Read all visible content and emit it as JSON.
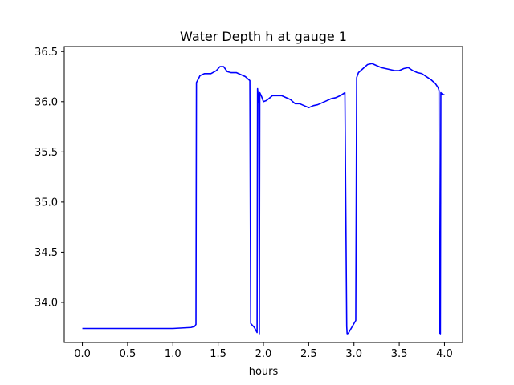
{
  "chart_data": {
    "type": "line",
    "title": "Water Depth h at gauge 1",
    "xlabel": "hours",
    "ylabel": "",
    "xlim": [
      -0.2,
      4.2
    ],
    "ylim": [
      33.6,
      36.55
    ],
    "xticks": [
      0.0,
      0.5,
      1.0,
      1.5,
      2.0,
      2.5,
      3.0,
      3.5,
      4.0
    ],
    "xtick_labels": [
      "0.0",
      "0.5",
      "1.0",
      "1.5",
      "2.0",
      "2.5",
      "3.0",
      "3.5",
      "4.0"
    ],
    "yticks": [
      34.0,
      34.5,
      35.0,
      35.5,
      36.0,
      36.5
    ],
    "ytick_labels": [
      "34.0",
      "34.5",
      "35.0",
      "35.5",
      "36.0",
      "36.5"
    ],
    "grid": false,
    "colors": {
      "line": "#0000ff",
      "axes": "#000000",
      "background": "#ffffff"
    },
    "series": [
      {
        "x": [
          0.0,
          0.5,
          1.0,
          1.2,
          1.24,
          1.255,
          1.26,
          1.3,
          1.35,
          1.42,
          1.48,
          1.52,
          1.56,
          1.6,
          1.64,
          1.7,
          1.75,
          1.8,
          1.85,
          1.86,
          1.9,
          1.93,
          1.935,
          1.95,
          1.955,
          1.96,
          1.98,
          2.0,
          2.03,
          2.06,
          2.1,
          2.15,
          2.2,
          2.25,
          2.3,
          2.35,
          2.4,
          2.45,
          2.5,
          2.55,
          2.6,
          2.65,
          2.7,
          2.75,
          2.8,
          2.85,
          2.9,
          2.92,
          2.925,
          2.93,
          3.02,
          3.03,
          3.05,
          3.1,
          3.15,
          3.2,
          3.25,
          3.3,
          3.35,
          3.4,
          3.45,
          3.5,
          3.55,
          3.6,
          3.65,
          3.7,
          3.75,
          3.8,
          3.85,
          3.9,
          3.93,
          3.94,
          3.945,
          3.955,
          3.96,
          3.98,
          4.0
        ],
        "y": [
          33.74,
          33.74,
          33.74,
          33.75,
          33.76,
          33.78,
          36.19,
          36.26,
          36.28,
          36.28,
          36.31,
          36.35,
          36.35,
          36.3,
          36.29,
          36.29,
          36.27,
          36.25,
          36.21,
          33.79,
          33.75,
          33.7,
          36.13,
          35.98,
          33.68,
          36.09,
          36.05,
          36.0,
          36.01,
          36.03,
          36.06,
          36.06,
          36.06,
          36.04,
          36.02,
          35.98,
          35.98,
          35.96,
          35.94,
          35.96,
          35.97,
          35.99,
          36.01,
          36.03,
          36.04,
          36.06,
          36.09,
          33.76,
          33.68,
          33.68,
          33.82,
          36.24,
          36.29,
          36.33,
          36.37,
          36.38,
          36.36,
          36.34,
          36.33,
          36.32,
          36.31,
          36.31,
          36.33,
          36.34,
          36.31,
          36.29,
          36.28,
          36.25,
          36.22,
          36.18,
          36.14,
          36.11,
          33.7,
          33.68,
          36.09,
          36.07,
          36.07
        ]
      }
    ]
  }
}
